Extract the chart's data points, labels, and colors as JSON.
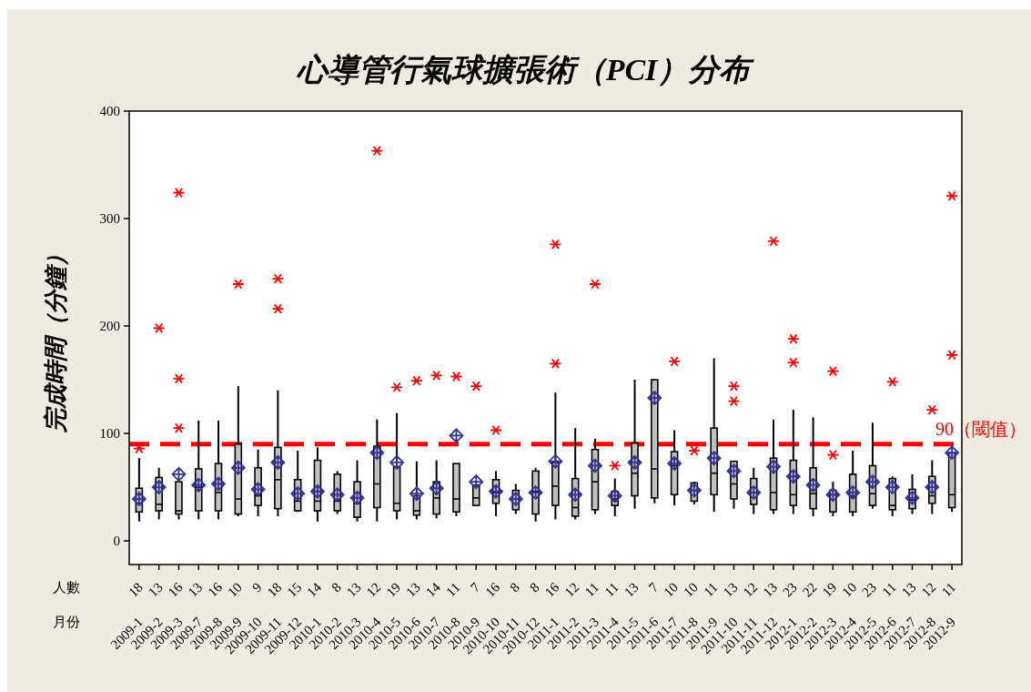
{
  "chart_data": {
    "type": "box",
    "title": "心導管行氣球擴張術（PCI）分布",
    "ylabel": "完成時間（分鐘）",
    "categories": [
      "2009-1",
      "2009-2",
      "2009-3",
      "2009-7",
      "2009-8",
      "2009-9",
      "2009-10",
      "2009-11",
      "2009-12",
      "2010-1",
      "2010-2",
      "2010-3",
      "2010-4",
      "2010-5",
      "2010-6",
      "2010-7",
      "2010-8",
      "2010-9",
      "2010-10",
      "2010-11",
      "2010-12",
      "2011-1",
      "2011-2",
      "2011-3",
      "2011-4",
      "2011-5",
      "2011-6",
      "2011-7",
      "2011-8",
      "2011-9",
      "2011-10",
      "2011-11",
      "2011-12",
      "2012-1",
      "2012-2",
      "2012-3",
      "2012-4",
      "2012-5",
      "2012-6",
      "2012-7",
      "2012-8",
      "2012-9"
    ],
    "ylim": [
      -22,
      400
    ],
    "yticks": [
      0,
      100,
      200,
      300,
      400
    ],
    "grid": false,
    "ref_lines": [
      {
        "axis": "y",
        "value": 90,
        "label": "90（閾值）",
        "color": "#ff0000",
        "line_style": "dashed"
      }
    ],
    "annotations": [
      "人數",
      "月份",
      {
        "text": "18",
        "x": "2009-1"
      },
      {
        "text": "13",
        "x": "2009-2"
      },
      {
        "text": "16",
        "x": "2009-3"
      },
      {
        "text": "13",
        "x": "2009-7"
      },
      {
        "text": "16",
        "x": "2009-8"
      },
      {
        "text": "10",
        "x": "2009-9"
      },
      {
        "text": "9",
        "x": "2009-10"
      },
      {
        "text": "18",
        "x": "2009-11"
      },
      {
        "text": "15",
        "x": "2009-12"
      },
      {
        "text": "14",
        "x": "2010-1"
      },
      {
        "text": "8",
        "x": "2010-2"
      },
      {
        "text": "13",
        "x": "2010-3"
      },
      {
        "text": "12",
        "x": "2010-4"
      },
      {
        "text": "19",
        "x": "2010-5"
      },
      {
        "text": "13",
        "x": "2010-6"
      },
      {
        "text": "14",
        "x": "2010-7"
      },
      {
        "text": "11",
        "x": "2010-8"
      },
      {
        "text": "7",
        "x": "2010-9"
      },
      {
        "text": "16",
        "x": "2010-10"
      },
      {
        "text": "8",
        "x": "2010-11"
      },
      {
        "text": "8",
        "x": "2010-12"
      },
      {
        "text": "16",
        "x": "2011-1"
      },
      {
        "text": "12",
        "x": "2011-2"
      },
      {
        "text": "11",
        "x": "2011-3"
      },
      {
        "text": "11",
        "x": "2011-4"
      },
      {
        "text": "13",
        "x": "2011-5"
      },
      {
        "text": "7",
        "x": "2011-6"
      },
      {
        "text": "10",
        "x": "2011-7"
      },
      {
        "text": "10",
        "x": "2011-8"
      },
      {
        "text": "11",
        "x": "2011-9"
      },
      {
        "text": "13",
        "x": "2011-10"
      },
      {
        "text": "12",
        "x": "2011-11"
      },
      {
        "text": "13",
        "x": "2011-12"
      },
      {
        "text": "23",
        "x": "2012-1"
      },
      {
        "text": "22",
        "x": "2012-2"
      },
      {
        "text": "19",
        "x": "2012-3"
      },
      {
        "text": "10",
        "x": "2012-4"
      },
      {
        "text": "23",
        "x": "2012-5"
      },
      {
        "text": "11",
        "x": "2012-6"
      },
      {
        "text": "13",
        "x": "2012-7"
      },
      {
        "text": "12",
        "x": "2012-8"
      },
      {
        "text": "11",
        "x": "2012-9"
      }
    ],
    "series": [
      {
        "color": "#c0c0c0",
        "boxes": [
          {
            "low": 18,
            "q1": 27,
            "median": 35,
            "q3": 49,
            "high": 77,
            "mean": 39,
            "outliers": [
              86
            ]
          },
          {
            "low": 20,
            "q1": 28,
            "median": 34,
            "q3": 59,
            "high": 68,
            "mean": 50,
            "outliers": [
              198
            ]
          },
          {
            "low": 20,
            "q1": 25,
            "median": 28,
            "q3": 55,
            "high": 55,
            "mean": 62,
            "outliers": [
              105,
              151,
              324
            ]
          },
          {
            "low": 20,
            "q1": 28,
            "median": 50,
            "q3": 67,
            "high": 112,
            "mean": 52
          },
          {
            "low": 20,
            "q1": 28,
            "median": 45,
            "q3": 72,
            "high": 112,
            "mean": 53
          },
          {
            "low": 23,
            "q1": 25,
            "median": 39,
            "q3": 90,
            "high": 144,
            "mean": 68,
            "outliers": [
              239
            ]
          },
          {
            "low": 23,
            "q1": 33,
            "median": 42,
            "q3": 68,
            "high": 85,
            "mean": 48
          },
          {
            "low": 23,
            "q1": 30,
            "median": 57,
            "q3": 87,
            "high": 140,
            "mean": 73,
            "outliers": [
              216,
              244
            ]
          },
          {
            "low": 27,
            "q1": 28,
            "median": 37,
            "q3": 57,
            "high": 84,
            "mean": 44
          },
          {
            "low": 18,
            "q1": 28,
            "median": 37,
            "q3": 75,
            "high": 87,
            "mean": 46
          },
          {
            "low": 25,
            "q1": 28,
            "median": 37,
            "q3": 62,
            "high": 65,
            "mean": 43
          },
          {
            "low": 18,
            "q1": 22,
            "median": 35,
            "q3": 55,
            "high": 75,
            "mean": 40
          },
          {
            "low": 18,
            "q1": 31,
            "median": 53,
            "q3": 88,
            "high": 113,
            "mean": 82,
            "outliers": [
              363
            ]
          },
          {
            "low": 20,
            "q1": 28,
            "median": 35,
            "q3": 69,
            "high": 119,
            "mean": 73,
            "outliers": [
              143
            ]
          },
          {
            "low": 20,
            "q1": 24,
            "median": 28,
            "q3": 42,
            "high": 74,
            "mean": 44,
            "outliers": [
              149
            ]
          },
          {
            "low": 21,
            "q1": 25,
            "median": 40,
            "q3": 55,
            "high": 75,
            "mean": 49,
            "outliers": [
              154
            ]
          },
          {
            "low": 23,
            "q1": 27,
            "median": 39,
            "q3": 72,
            "high": 72,
            "mean": 98,
            "outliers": [
              153
            ]
          },
          {
            "low": 33,
            "q1": 33,
            "median": 40,
            "q3": 52,
            "high": 52,
            "mean": 55,
            "outliers": [
              144
            ]
          },
          {
            "low": 23,
            "q1": 35,
            "median": 45,
            "q3": 57,
            "high": 65,
            "mean": 46,
            "outliers": [
              103
            ]
          },
          {
            "low": 25,
            "q1": 29,
            "median": 39,
            "q3": 47,
            "high": 53,
            "mean": 39
          },
          {
            "low": 18,
            "q1": 25,
            "median": 46,
            "q3": 65,
            "high": 68,
            "mean": 45
          },
          {
            "low": 20,
            "q1": 33,
            "median": 51,
            "q3": 73,
            "high": 138,
            "mean": 74,
            "outliers": [
              165,
              276
            ]
          },
          {
            "low": 20,
            "q1": 23,
            "median": 31,
            "q3": 58,
            "high": 105,
            "mean": 43
          },
          {
            "low": 25,
            "q1": 29,
            "median": 55,
            "q3": 85,
            "high": 95,
            "mean": 70,
            "outliers": [
              239
            ]
          },
          {
            "low": 23,
            "q1": 33,
            "median": 39,
            "q3": 46,
            "high": 58,
            "mean": 42,
            "outliers": [
              70
            ]
          },
          {
            "low": 30,
            "q1": 42,
            "median": 63,
            "q3": 91,
            "high": 150,
            "mean": 73
          },
          {
            "low": 35,
            "q1": 40,
            "median": 67,
            "q3": 150,
            "high": 150,
            "mean": 133
          },
          {
            "low": 33,
            "q1": 43,
            "median": 70,
            "q3": 83,
            "high": 103,
            "mean": 72,
            "outliers": [
              167
            ]
          },
          {
            "low": 34,
            "q1": 37,
            "median": 47,
            "q3": 54,
            "high": 55,
            "mean": 47,
            "outliers": [
              84
            ]
          },
          {
            "low": 27,
            "q1": 43,
            "median": 63,
            "q3": 105,
            "high": 170,
            "mean": 77
          },
          {
            "low": 30,
            "q1": 39,
            "median": 53,
            "q3": 74,
            "high": 74,
            "mean": 65,
            "outliers": [
              130,
              144
            ]
          },
          {
            "low": 25,
            "q1": 34,
            "median": 45,
            "q3": 58,
            "high": 68,
            "mean": 45
          },
          {
            "low": 25,
            "q1": 29,
            "median": 45,
            "q3": 77,
            "high": 113,
            "mean": 69,
            "outliers": [
              279
            ]
          },
          {
            "low": 25,
            "q1": 33,
            "median": 43,
            "q3": 75,
            "high": 122,
            "mean": 60,
            "outliers": [
              166,
              188
            ]
          },
          {
            "low": 23,
            "q1": 30,
            "median": 44,
            "q3": 68,
            "high": 115,
            "mean": 52
          },
          {
            "low": 23,
            "q1": 27,
            "median": 43,
            "q3": 47,
            "high": 55,
            "mean": 43,
            "outliers": [
              80,
              158
            ]
          },
          {
            "low": 23,
            "q1": 27,
            "median": 42,
            "q3": 62,
            "high": 84,
            "mean": 45
          },
          {
            "low": 30,
            "q1": 33,
            "median": 44,
            "q3": 70,
            "high": 110,
            "mean": 55
          },
          {
            "low": 23,
            "q1": 29,
            "median": 33,
            "q3": 58,
            "high": 60,
            "mean": 50,
            "outliers": [
              148
            ]
          },
          {
            "low": 25,
            "q1": 30,
            "median": 38,
            "q3": 48,
            "high": 62,
            "mean": 40
          },
          {
            "low": 25,
            "q1": 35,
            "median": 42,
            "q3": 60,
            "high": 75,
            "mean": 50,
            "outliers": [
              122
            ]
          },
          {
            "low": 27,
            "q1": 31,
            "median": 43,
            "q3": 82,
            "high": 82,
            "mean": 82,
            "outliers": [
              173,
              321
            ]
          }
        ]
      }
    ]
  }
}
